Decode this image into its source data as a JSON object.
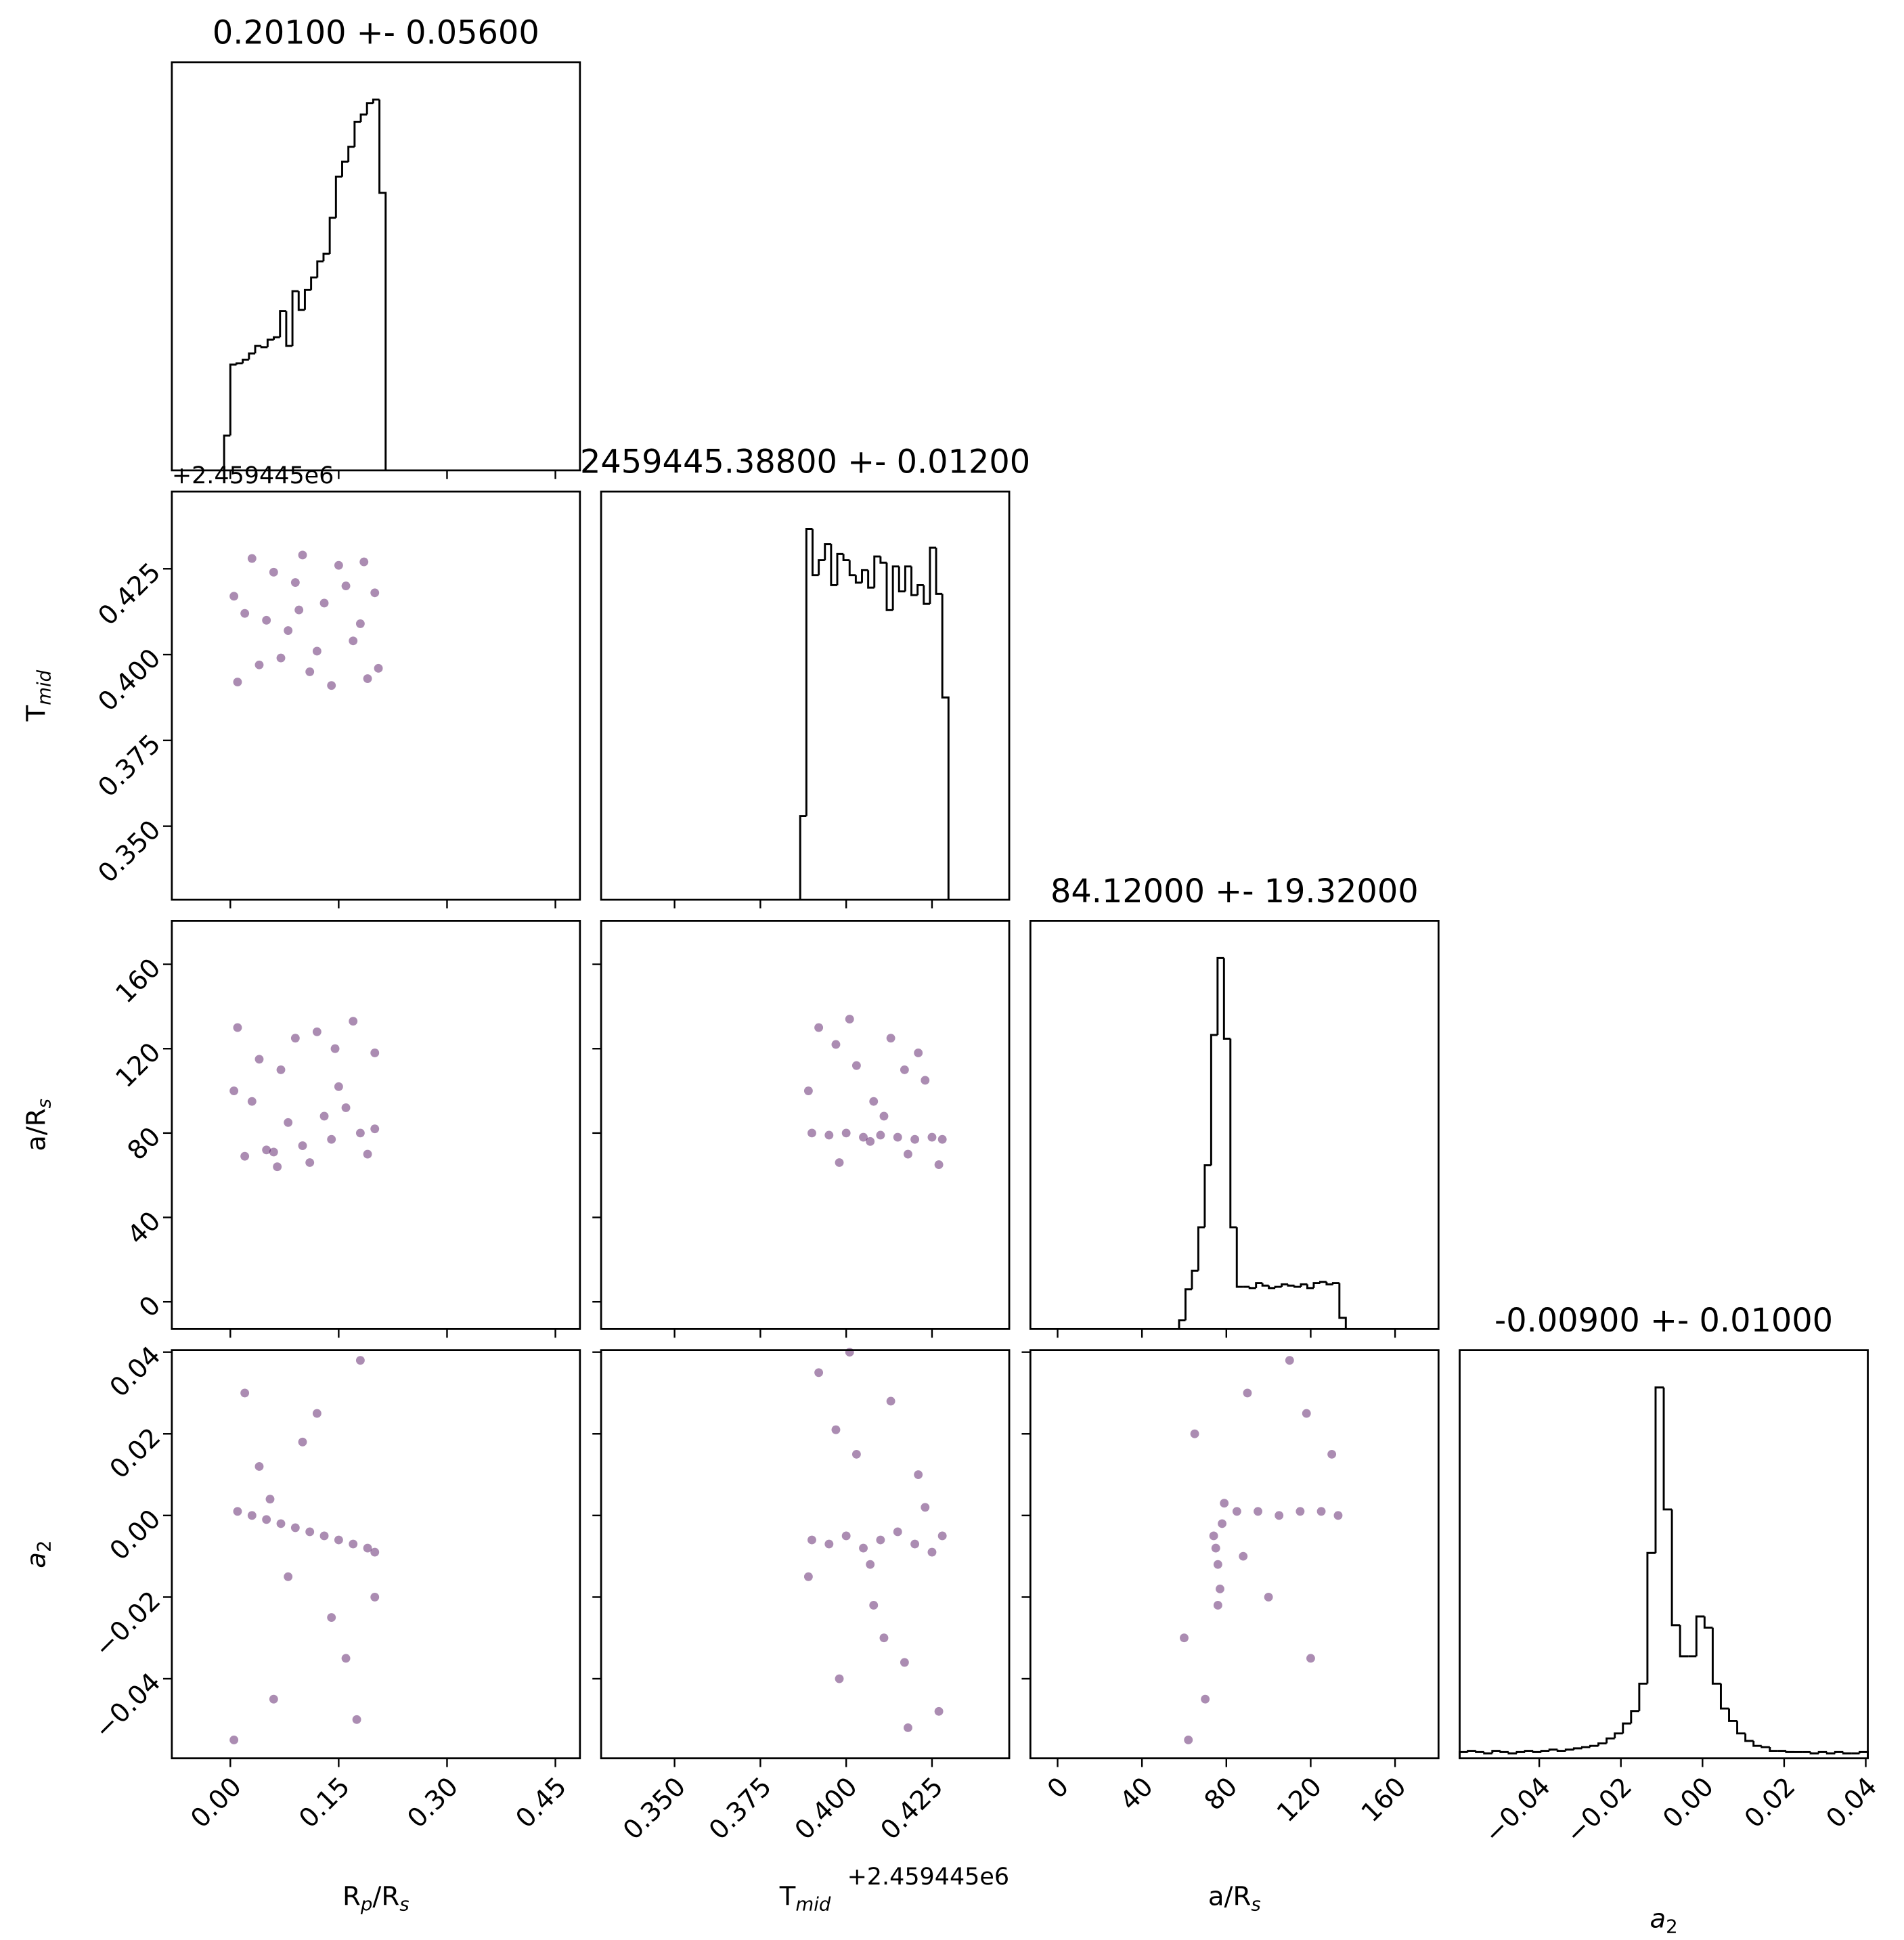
{
  "chart_data": {
    "type": "corner",
    "color": "#440154",
    "hist_color": "#000000",
    "variables": [
      {
        "label": [
          {
            "text": "R"
          },
          {
            "text": "p",
            "sub": true,
            "italic": true
          },
          {
            "text": "/R"
          },
          {
            "text": "s",
            "sub": true,
            "italic": true
          }
        ],
        "title": "0.20100 +- 0.05600",
        "lim": [
          -0.081,
          0.484
        ],
        "ticks": [
          {
            "value": 0,
            "label": "0.00"
          },
          0.15,
          {
            "value": 0.3,
            "label": "0.30"
          },
          0.45
        ],
        "hist": {
          "bins": [
            -0.0086,
            0,
            0.0086,
            0.0172,
            0.0258,
            0.0344,
            0.043,
            0.0516,
            0.0602,
            0.0688,
            0.0774,
            0.086,
            0.0946,
            0.1032,
            0.1118,
            0.1204,
            0.129,
            0.1376,
            0.1462,
            0.1548,
            0.1634,
            0.172,
            0.1806,
            0.1892,
            0.1978,
            0.2064,
            0.215
          ],
          "values": [
            28,
            85,
            86,
            89,
            94,
            100,
            99,
            105,
            107,
            128,
            100,
            144,
            129,
            145,
            155,
            168,
            174,
            203,
            236,
            248,
            260,
            280,
            286,
            295,
            298,
            223
          ],
          "ylim": [
            0,
            328
          ]
        }
      },
      {
        "label": [
          {
            "text": "T"
          },
          {
            "text": "mid",
            "sub": true,
            "italic": true
          }
        ],
        "title": "2459445.38800 +- 0.01200",
        "offset": "+2.459445e6",
        "lim": [
          0.3286,
          0.4475
        ],
        "ticks": [
          {
            "value": 0.35,
            "label": "0.350"
          },
          0.375,
          {
            "value": 0.4,
            "label": "0.400"
          },
          0.425
        ],
        "hist": {
          "bins": [
            0.3866,
            0.3884,
            0.3902,
            0.392,
            0.3938,
            0.3956,
            0.3974,
            0.3992,
            0.401,
            0.4028,
            0.4046,
            0.4064,
            0.4082,
            0.41,
            0.4118,
            0.4136,
            0.4154,
            0.4172,
            0.419,
            0.4208,
            0.4226,
            0.4244,
            0.4262,
            0.428,
            0.4298
          ],
          "values": [
            67,
            297,
            260,
            272,
            285,
            252,
            277,
            272,
            260,
            254,
            264,
            250,
            275,
            270,
            232,
            267,
            247,
            267,
            244,
            252,
            237,
            282,
            245,
            162
          ],
          "ylim": [
            0,
            327
          ]
        }
      },
      {
        "label": [
          {
            "text": "a/R"
          },
          {
            "text": "s",
            "sub": true,
            "italic": true
          }
        ],
        "title": "84.12000 +- 19.32000",
        "lim": [
          -12.9,
          180.6
        ],
        "ticks": [
          0,
          40,
          80,
          120,
          160
        ],
        "hist": {
          "bins": [
            57.6,
            60.64,
            63.68,
            66.72,
            69.76,
            72.8,
            75.84,
            78.88,
            81.92,
            84.96,
            88,
            91.04,
            94.08,
            97.12,
            100.16,
            103.2,
            106.24,
            109.28,
            112.32,
            115.36,
            118.4,
            121.44,
            124.48,
            127.52,
            130.56,
            133.6,
            136.64
          ],
          "values": [
            7,
            32,
            47,
            82,
            132,
            237,
            299,
            234,
            82,
            34,
            34,
            33,
            37,
            35,
            33,
            34,
            36,
            35,
            34,
            36,
            33,
            37,
            38,
            36,
            37,
            9
          ],
          "ylim": [
            0,
            329
          ]
        }
      },
      {
        "label": [
          {
            "text": "a",
            "italic": true
          },
          {
            "text": "2",
            "sub": true
          }
        ],
        "title": "-0.00900 +- 0.01000",
        "lim": [
          -0.0595,
          0.0405
        ],
        "ticks": [
          {
            "value": -0.04,
            "label": "−0.04"
          },
          {
            "value": -0.02,
            "label": "−0.02"
          },
          {
            "value": 0,
            "label": "0.00"
          },
          0.02,
          0.04
        ],
        "hist": {
          "bins": [
            -0.0595,
            -0.0575,
            -0.0555,
            -0.0535,
            -0.0515,
            -0.0495,
            -0.0475,
            -0.0455,
            -0.0435,
            -0.0415,
            -0.0395,
            -0.0375,
            -0.0355,
            -0.0335,
            -0.0315,
            -0.0295,
            -0.0275,
            -0.0255,
            -0.0235,
            -0.0215,
            -0.0195,
            -0.0175,
            -0.0155,
            -0.0135,
            -0.0115,
            -0.0095,
            -0.0075,
            -0.0055,
            -0.0035,
            -0.0015,
            0.0005,
            0.0025,
            0.0045,
            0.0065,
            0.0085,
            0.0105,
            0.0125,
            0.0145,
            0.0165,
            0.0185,
            0.0205,
            0.0225,
            0.0245,
            0.0265,
            0.0285,
            0.0305,
            0.0325,
            0.0345,
            0.0365,
            0.0385,
            0.0405
          ],
          "values": [
            5,
            6,
            5,
            4,
            6,
            5,
            4,
            5,
            6,
            5,
            6,
            7,
            6,
            7,
            8,
            9,
            10,
            12,
            16,
            20,
            28,
            38,
            60,
            165,
            298,
            200,
            107,
            82,
            82,
            114,
            105,
            60,
            40,
            30,
            20,
            14,
            10,
            9,
            6,
            6,
            5,
            5,
            5,
            4,
            5,
            4,
            5,
            4,
            4,
            5
          ],
          "ylim": [
            0,
            328
          ]
        }
      }
    ],
    "pairs": [
      {
        "x": [
          0.01,
          0.03,
          0.05,
          0.07,
          0.09,
          0.11,
          0.13,
          0.15,
          0.17,
          0.19,
          0.2,
          0.02,
          0.04,
          0.06,
          0.08,
          0.1,
          0.12,
          0.14,
          0.16,
          0.18,
          0.205,
          0.005,
          0.095,
          0.185
        ],
        "y": [
          0.392,
          0.428,
          0.41,
          0.399,
          0.421,
          0.395,
          0.415,
          0.426,
          0.404,
          0.393,
          0.418,
          0.412,
          0.397,
          0.424,
          0.407,
          0.429,
          0.401,
          0.391,
          0.42,
          0.409,
          0.396,
          0.417,
          0.413,
          0.427
        ]
      },
      {
        "x": [
          0.01,
          0.03,
          0.05,
          0.07,
          0.09,
          0.11,
          0.13,
          0.15,
          0.17,
          0.19,
          0.2,
          0.02,
          0.06,
          0.1,
          0.14,
          0.18,
          0.005,
          0.04,
          0.08,
          0.12,
          0.16,
          0.2,
          0.065,
          0.145
        ],
        "y": [
          130,
          95,
          72,
          110,
          125,
          66,
          88,
          102,
          133,
          70,
          118,
          69,
          71,
          74,
          77,
          80,
          100,
          115,
          85,
          128,
          92,
          82,
          64,
          120
        ]
      },
      {
        "x": [
          0.39,
          0.395,
          0.4,
          0.405,
          0.41,
          0.415,
          0.42,
          0.425,
          0.428,
          0.392,
          0.398,
          0.403,
          0.408,
          0.413,
          0.418,
          0.423,
          0.389,
          0.401,
          0.411,
          0.421,
          0.427,
          0.397,
          0.407,
          0.417
        ],
        "y": [
          80,
          79,
          80,
          78,
          79,
          78,
          77,
          78,
          77,
          130,
          66,
          112,
          95,
          125,
          70,
          105,
          100,
          134,
          88,
          118,
          65,
          122,
          76,
          110
        ]
      },
      {
        "x": [
          0.01,
          0.03,
          0.05,
          0.07,
          0.09,
          0.11,
          0.13,
          0.15,
          0.17,
          0.19,
          0.2,
          0.02,
          0.06,
          0.1,
          0.14,
          0.18,
          0.005,
          0.04,
          0.08,
          0.12,
          0.16,
          0.2,
          0.055,
          0.175
        ],
        "y": [
          0.001,
          0,
          -0.001,
          -0.002,
          -0.003,
          -0.004,
          -0.005,
          -0.006,
          -0.007,
          -0.008,
          -0.009,
          0.03,
          -0.045,
          0.018,
          -0.025,
          0.038,
          -0.055,
          0.012,
          -0.015,
          0.025,
          -0.035,
          -0.02,
          0.004,
          -0.05
        ]
      },
      {
        "x": [
          0.39,
          0.395,
          0.4,
          0.405,
          0.41,
          0.415,
          0.42,
          0.425,
          0.428,
          0.392,
          0.398,
          0.403,
          0.408,
          0.413,
          0.418,
          0.423,
          0.389,
          0.401,
          0.411,
          0.421,
          0.427,
          0.397,
          0.407,
          0.417
        ],
        "y": [
          -0.006,
          -0.007,
          -0.005,
          -0.008,
          -0.006,
          -0.004,
          -0.007,
          -0.009,
          -0.005,
          0.035,
          -0.04,
          0.015,
          -0.022,
          0.028,
          -0.052,
          0.002,
          -0.015,
          0.04,
          -0.03,
          0.01,
          -0.048,
          0.021,
          -0.012,
          -0.036
        ]
      },
      {
        "x": [
          74,
          76,
          78,
          77,
          75,
          79,
          76,
          85,
          95,
          105,
          115,
          125,
          133,
          60,
          65,
          70,
          90,
          100,
          110,
          120,
          130,
          62,
          88,
          118
        ],
        "y": [
          -0.005,
          -0.012,
          -0.002,
          -0.018,
          -0.008,
          0.003,
          -0.022,
          0.001,
          0.001,
          0,
          0.001,
          0.001,
          0,
          -0.03,
          0.02,
          -0.045,
          0.03,
          -0.02,
          0.038,
          -0.035,
          0.015,
          -0.055,
          -0.01,
          0.025
        ]
      }
    ]
  }
}
